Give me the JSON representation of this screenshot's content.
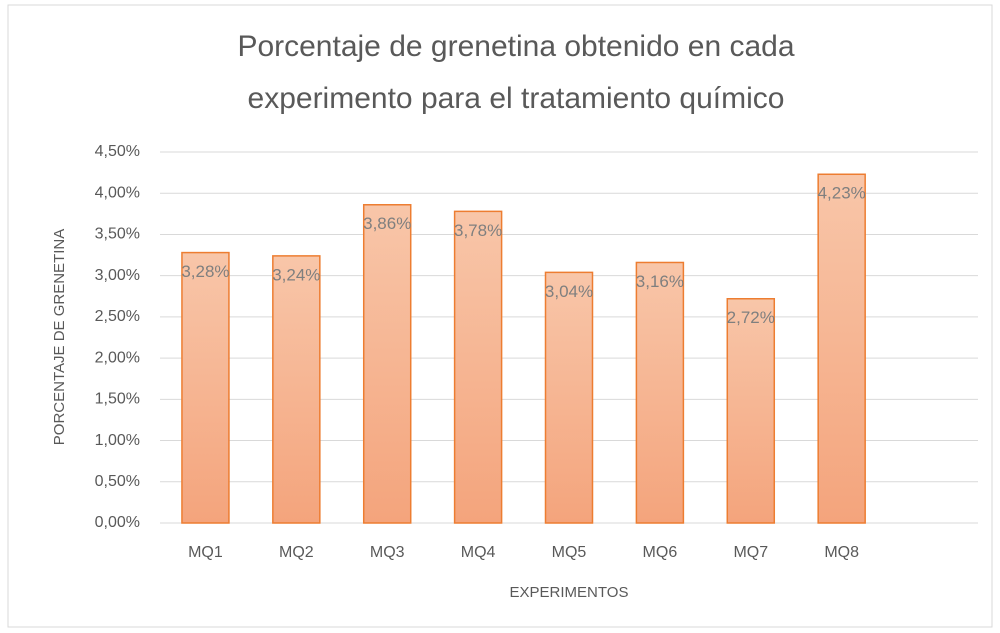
{
  "chart_data": {
    "type": "bar",
    "title": [
      "Porcentaje de grenetina obtenido en cada",
      "experimento para el tratamiento químico"
    ],
    "x_label": "EXPERIMENTOS",
    "y_label": "PORCENTAJE DE GRENETINA",
    "categories": [
      "MQ1",
      "MQ2",
      "MQ3",
      "MQ4",
      "MQ5",
      "MQ6",
      "MQ7",
      "MQ8",
      null
    ],
    "values": [
      3.28,
      3.24,
      3.86,
      3.78,
      3.04,
      3.16,
      2.72,
      4.23,
      null
    ],
    "value_labels": [
      "3,28%",
      "3,24%",
      "3,86%",
      "3,78%",
      "3,04%",
      "3,16%",
      "2,72%",
      "4,23%",
      null
    ],
    "color": "#ed7d31",
    "ylim": [
      0,
      4.5
    ],
    "yticks": [
      {
        "value": 0,
        "label": "0,00%"
      },
      {
        "value": 0.5,
        "label": "0,50%"
      },
      {
        "value": 1,
        "label": "1,00%"
      },
      {
        "value": 1.5,
        "label": "1,50%"
      },
      {
        "value": 2,
        "label": "2,00%"
      },
      {
        "value": 2.5,
        "label": "2,50%"
      },
      {
        "value": 3,
        "label": "3,00%"
      },
      {
        "value": 3.5,
        "label": "3,50%"
      },
      {
        "value": 4,
        "label": "4,00%"
      },
      {
        "value": 4.5,
        "label": "4,50%"
      }
    ],
    "grid": true
  }
}
